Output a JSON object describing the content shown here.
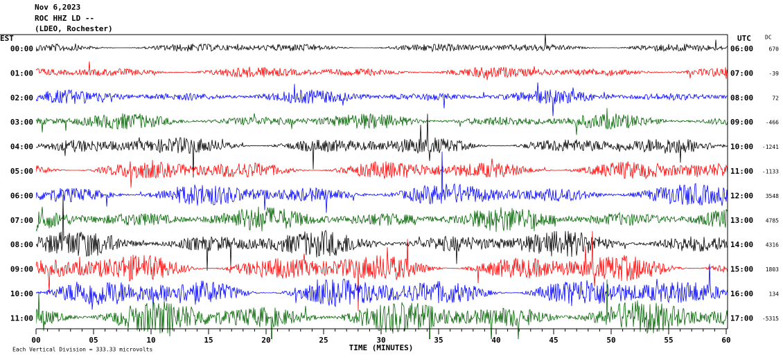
{
  "header": {
    "date": "Nov 6,2023",
    "station": "ROC HHZ LD --",
    "network": "(LDEO, Rochester)"
  },
  "left_axis": {
    "label": "EST",
    "rows": [
      "00:00",
      "01:00",
      "02:00",
      "03:00",
      "04:00",
      "05:00",
      "06:00",
      "07:00",
      "08:00",
      "09:00",
      "10:00",
      "11:00"
    ]
  },
  "right_axis": {
    "label": "UTC",
    "rows": [
      "06:00",
      "07:00",
      "08:00",
      "09:00",
      "10:00",
      "11:00",
      "12:00",
      "13:00",
      "14:00",
      "15:00",
      "16:00",
      "17:00"
    ]
  },
  "dc": {
    "label": "DC",
    "values": [
      "670",
      "-39",
      "72",
      "-466",
      "-1241",
      "-1133",
      "3548",
      "4785",
      "4316",
      "1803",
      "134",
      "-5315"
    ]
  },
  "x_axis": {
    "label": "TIME (MINUTES)",
    "ticks": [
      "00",
      "05",
      "10",
      "15",
      "20",
      "25",
      "30",
      "35",
      "40",
      "45",
      "50",
      "55",
      "60"
    ]
  },
  "trace_colors": [
    "#000000",
    "#ff0000",
    "#0000ff",
    "#006400"
  ],
  "footer": "Each Vertical Division =  333.33 microvolts"
}
